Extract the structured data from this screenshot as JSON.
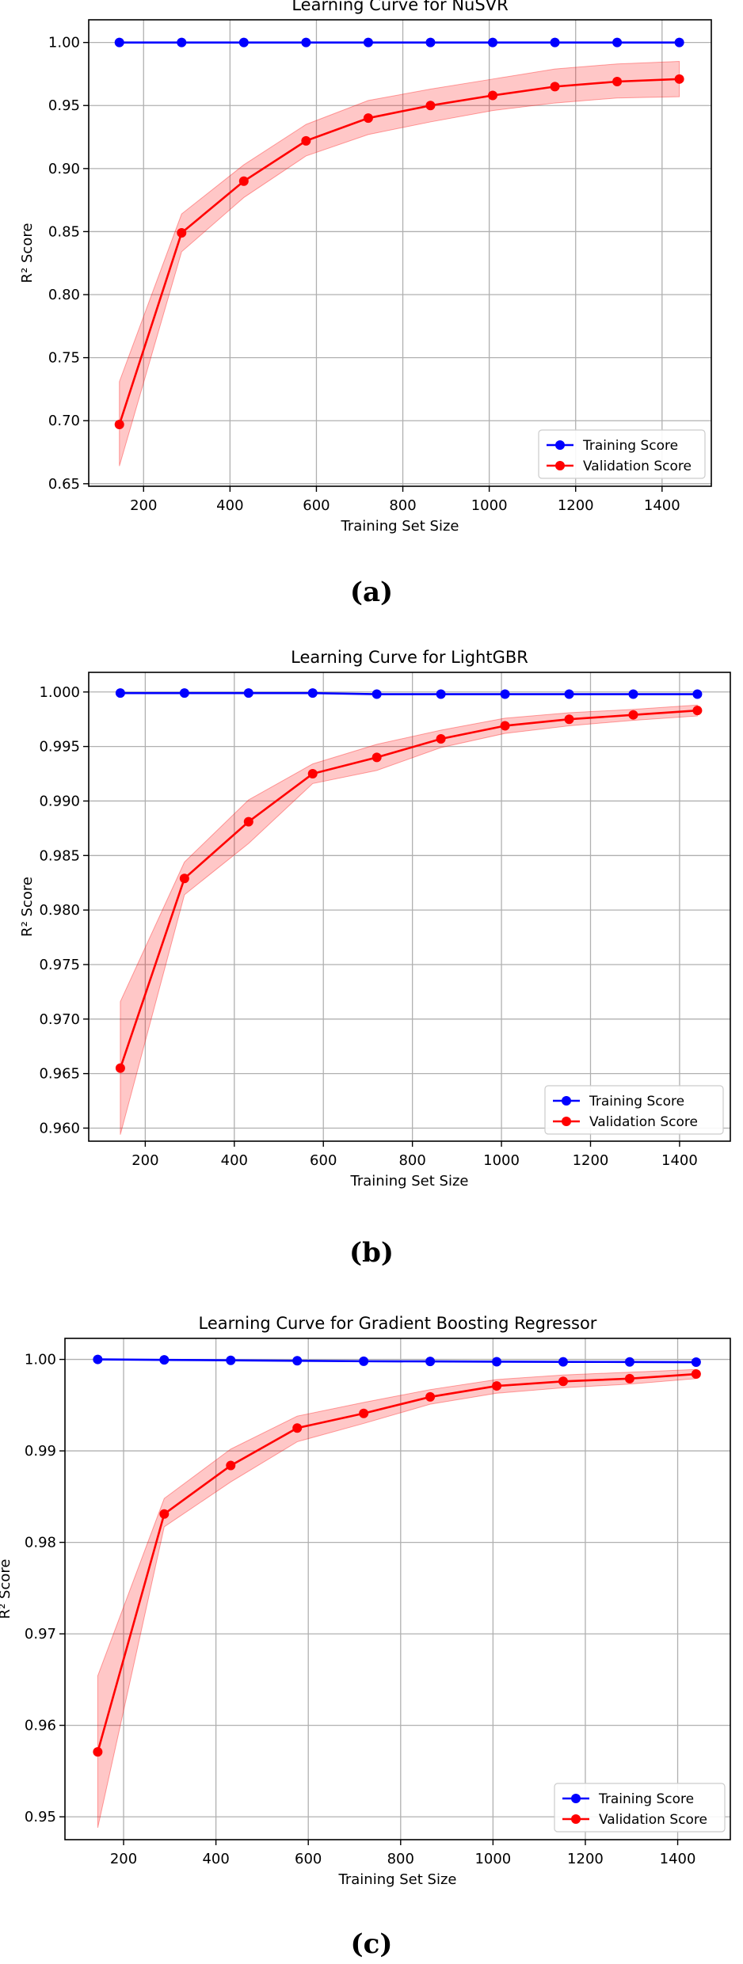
{
  "captions": [
    "(a)",
    "(b)",
    "(c)"
  ],
  "colors": {
    "training": "#0000ff",
    "validation": "#ff0000",
    "band": "#ff0000",
    "grid": "#b0b0b0",
    "axis": "#000000"
  },
  "chart_data": [
    {
      "type": "line",
      "title": "Learning Curve for NuSVR",
      "xlabel": "Training Set Size",
      "ylabel": "R² Score",
      "xlim": [
        73,
        1514
      ],
      "ylim": [
        0.648,
        1.018
      ],
      "xticks": [
        200,
        400,
        600,
        800,
        1000,
        1200,
        1400
      ],
      "xtick_labels": [
        "200",
        "400",
        "600",
        "800",
        "1000",
        "1200",
        "1400"
      ],
      "yticks": [
        0.65,
        0.7,
        0.75,
        0.8,
        0.85,
        0.9,
        0.95,
        1.0
      ],
      "ytick_labels": [
        "0.65",
        "0.70",
        "0.75",
        "0.80",
        "0.85",
        "0.90",
        "0.95",
        "1.00"
      ],
      "grid": true,
      "legend_position": "lower-right",
      "x": [
        144,
        288,
        432,
        576,
        720,
        864,
        1008,
        1152,
        1296,
        1440
      ],
      "series": [
        {
          "name": "Training Score",
          "values": [
            1.0,
            1.0,
            1.0,
            1.0,
            1.0,
            1.0,
            1.0,
            1.0,
            1.0,
            1.0
          ]
        },
        {
          "name": "Validation Score",
          "values": [
            0.697,
            0.849,
            0.89,
            0.922,
            0.94,
            0.95,
            0.958,
            0.965,
            0.969,
            0.971
          ],
          "band_low": [
            0.664,
            0.834,
            0.877,
            0.91,
            0.927,
            0.937,
            0.946,
            0.952,
            0.956,
            0.957
          ],
          "band_high": [
            0.731,
            0.864,
            0.903,
            0.935,
            0.954,
            0.963,
            0.971,
            0.979,
            0.983,
            0.985
          ]
        }
      ]
    },
    {
      "type": "line",
      "title": "Learning Curve for LightGBR",
      "xlabel": "Training Set Size",
      "ylabel": "R² Score",
      "xlim": [
        73,
        1514
      ],
      "ylim": [
        0.9588,
        1.0018
      ],
      "xticks": [
        200,
        400,
        600,
        800,
        1000,
        1200,
        1400
      ],
      "xtick_labels": [
        "200",
        "400",
        "600",
        "800",
        "1000",
        "1200",
        "1400"
      ],
      "yticks": [
        0.96,
        0.965,
        0.97,
        0.975,
        0.98,
        0.985,
        0.99,
        0.995,
        1.0
      ],
      "ytick_labels": [
        "0.960",
        "0.965",
        "0.970",
        "0.975",
        "0.980",
        "0.985",
        "0.990",
        "0.995",
        "1.000"
      ],
      "grid": true,
      "legend_position": "lower-right",
      "x": [
        144,
        288,
        432,
        576,
        720,
        864,
        1008,
        1152,
        1296,
        1440
      ],
      "series": [
        {
          "name": "Training Score",
          "values": [
            0.9999,
            0.9999,
            0.9999,
            0.9999,
            0.9998,
            0.9998,
            0.9998,
            0.9998,
            0.9998,
            0.9998
          ]
        },
        {
          "name": "Validation Score",
          "values": [
            0.9655,
            0.9829,
            0.9881,
            0.9925,
            0.994,
            0.9957,
            0.9969,
            0.9975,
            0.9979,
            0.9983
          ],
          "band_low": [
            0.9594,
            0.9814,
            0.9861,
            0.9916,
            0.9928,
            0.9949,
            0.9962,
            0.9969,
            0.9974,
            0.9978
          ],
          "band_high": [
            0.9716,
            0.9844,
            0.9901,
            0.9934,
            0.9952,
            0.9965,
            0.9976,
            0.9981,
            0.9984,
            0.9988
          ]
        }
      ]
    },
    {
      "type": "line",
      "title": "Learning Curve for Gradient Boosting Regressor",
      "xlabel": "Training Set Size",
      "ylabel": "R² Score",
      "xlim": [
        73,
        1514
      ],
      "ylim": [
        0.9475,
        1.0023
      ],
      "xticks": [
        200,
        400,
        600,
        800,
        1000,
        1200,
        1400
      ],
      "xtick_labels": [
        "200",
        "400",
        "600",
        "800",
        "1000",
        "1200",
        "1400"
      ],
      "yticks": [
        0.95,
        0.96,
        0.97,
        0.98,
        0.99,
        1.0
      ],
      "ytick_labels": [
        "0.95",
        "0.96",
        "0.97",
        "0.98",
        "0.99",
        "1.00"
      ],
      "grid": true,
      "legend_position": "lower-right",
      "x": [
        144,
        288,
        432,
        576,
        720,
        864,
        1008,
        1152,
        1296,
        1440
      ],
      "series": [
        {
          "name": "Training Score",
          "values": [
            1.0,
            0.99995,
            0.9999,
            0.99985,
            0.9998,
            0.99978,
            0.99975,
            0.99973,
            0.99972,
            0.9997
          ]
        },
        {
          "name": "Validation Score",
          "values": [
            0.9571,
            0.9831,
            0.9884,
            0.9925,
            0.9941,
            0.9959,
            0.9971,
            0.9976,
            0.9979,
            0.9984
          ],
          "band_low": [
            0.9488,
            0.9817,
            0.9866,
            0.991,
            0.993,
            0.9951,
            0.9963,
            0.9969,
            0.9973,
            0.9979
          ],
          "band_high": [
            0.9654,
            0.9848,
            0.9902,
            0.9938,
            0.9953,
            0.9967,
            0.9978,
            0.9983,
            0.9986,
            0.9989
          ]
        }
      ]
    }
  ]
}
